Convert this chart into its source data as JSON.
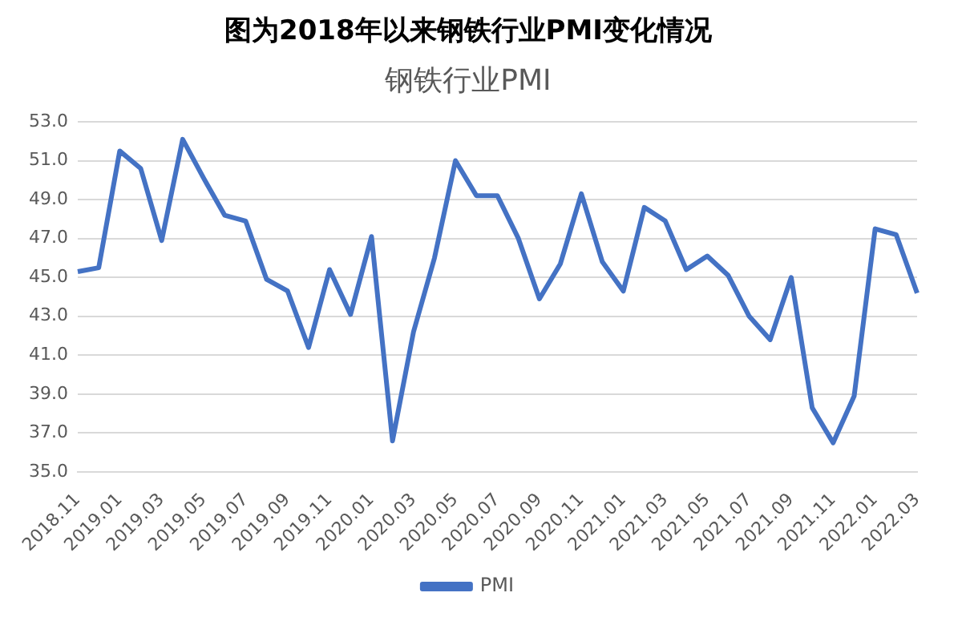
{
  "chart_data": {
    "type": "line",
    "title": "图为2018年以来钢铁行业PMI变化情况",
    "subtitle": "钢铁行业PMI",
    "categories": [
      "2018.11",
      null,
      "2019.01",
      null,
      "2019.03",
      null,
      "2019.05",
      null,
      "2019.07",
      null,
      "2019.09",
      null,
      "2019.11",
      null,
      "2020.01",
      null,
      "2020.03",
      null,
      "2020.05",
      null,
      "2020.07",
      null,
      "2020.09",
      null,
      "2020.11",
      null,
      "2021.01",
      null,
      "2021.03",
      null,
      "2021.05",
      null,
      "2021.07",
      null,
      "2021.09",
      null,
      "2021.11",
      null,
      "2022.01",
      null,
      "2022.03"
    ],
    "series": [
      {
        "name": "PMI",
        "color": "#4472c4",
        "values": [
          45.3,
          45.5,
          51.5,
          50.6,
          46.9,
          52.1,
          50.1,
          48.2,
          47.9,
          44.9,
          44.3,
          41.4,
          45.4,
          43.1,
          47.1,
          36.6,
          42.2,
          46.0,
          51.0,
          49.2,
          49.2,
          47.0,
          43.9,
          45.7,
          49.3,
          45.8,
          44.3,
          48.6,
          47.9,
          45.4,
          46.1,
          45.1,
          43.0,
          41.8,
          45.0,
          38.3,
          36.5,
          38.9,
          47.5,
          47.2,
          44.2
        ]
      }
    ],
    "ylim": [
      35,
      53
    ],
    "yticks": [
      {
        "value": 35,
        "label": "35.0"
      },
      {
        "value": 37,
        "label": "37.0"
      },
      {
        "value": 39,
        "label": "39.0"
      },
      {
        "value": 41,
        "label": "41.0"
      },
      {
        "value": 43,
        "label": "43.0"
      },
      {
        "value": 45,
        "label": "45.0"
      },
      {
        "value": 47,
        "label": "47.0"
      },
      {
        "value": 49,
        "label": "49.0"
      },
      {
        "value": 51,
        "label": "51.0"
      },
      {
        "value": 53,
        "label": "53.0"
      }
    ],
    "grid": "y",
    "legend": "bottom",
    "marker": "none",
    "line_style": "solid"
  }
}
